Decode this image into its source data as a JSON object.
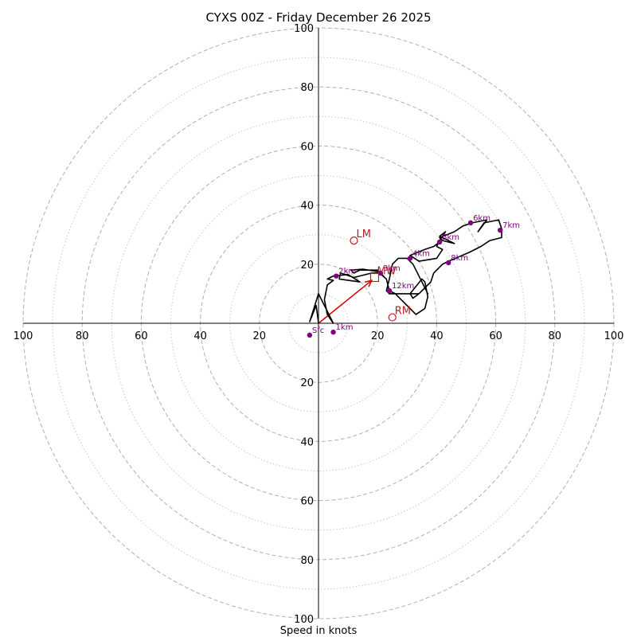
{
  "chart_data": {
    "type": "hodograph",
    "title": "CYXS 00Z - Friday December 26 2025",
    "xlabel": "Speed in knots",
    "units": "knots",
    "rmax": 100,
    "rings_major": [
      20,
      40,
      60,
      80,
      100
    ],
    "rings_minor": [
      10,
      30,
      50,
      70,
      90
    ],
    "tick_labels": {
      "top": [
        "20",
        "40",
        "60",
        "80",
        "100"
      ],
      "bottom": [
        "20",
        "40",
        "60",
        "80",
        "100"
      ],
      "left": [
        "20",
        "40",
        "60",
        "80",
        "100"
      ],
      "right": [
        "20",
        "40",
        "60",
        "80",
        "100"
      ]
    },
    "trace": [
      [
        0,
        0
      ],
      [
        -0.5,
        4
      ],
      [
        -0.8,
        6
      ],
      [
        -3,
        0.5
      ],
      [
        0,
        10
      ],
      [
        5,
        0
      ],
      [
        3,
        3
      ],
      [
        2,
        8
      ],
      [
        3,
        13
      ],
      [
        5,
        14.5
      ],
      [
        3,
        15
      ],
      [
        5,
        16
      ],
      [
        10,
        16.5
      ],
      [
        14,
        14
      ],
      [
        7,
        15
      ],
      [
        7.5,
        17
      ],
      [
        12,
        15.5
      ],
      [
        18,
        17
      ],
      [
        20,
        17
      ],
      [
        22,
        16
      ],
      [
        20,
        18
      ],
      [
        14,
        18
      ],
      [
        12,
        17
      ],
      [
        11,
        18
      ],
      [
        15,
        18.3
      ],
      [
        20,
        17.5
      ],
      [
        23,
        15
      ],
      [
        24,
        11
      ],
      [
        26,
        10
      ],
      [
        32,
        4
      ],
      [
        33,
        3
      ],
      [
        36,
        5
      ],
      [
        37,
        9
      ],
      [
        36,
        14
      ],
      [
        35,
        15
      ],
      [
        31,
        10
      ],
      [
        32,
        8.5
      ],
      [
        34,
        10
      ],
      [
        36,
        12
      ],
      [
        37,
        10
      ],
      [
        33,
        18
      ],
      [
        32,
        20
      ],
      [
        30,
        22
      ],
      [
        27,
        22
      ],
      [
        25,
        20
      ],
      [
        24,
        15
      ],
      [
        23,
        11
      ],
      [
        24,
        10
      ],
      [
        34,
        10
      ],
      [
        38,
        14
      ],
      [
        39,
        17
      ],
      [
        42,
        20
      ],
      [
        44,
        21
      ],
      [
        51,
        24
      ],
      [
        55,
        26
      ],
      [
        58,
        28
      ],
      [
        62,
        29
      ],
      [
        62,
        32
      ],
      [
        61,
        35
      ],
      [
        56,
        34
      ],
      [
        54,
        31
      ],
      [
        57,
        35
      ],
      [
        52,
        34
      ],
      [
        49,
        33
      ],
      [
        46,
        31
      ],
      [
        41,
        29
      ],
      [
        42,
        28
      ],
      [
        46,
        27
      ],
      [
        41,
        29.5
      ],
      [
        43,
        31
      ],
      [
        41,
        28
      ],
      [
        40,
        26
      ],
      [
        42,
        25
      ],
      [
        40,
        22
      ],
      [
        34,
        21
      ],
      [
        31,
        23
      ],
      [
        36,
        25
      ],
      [
        39,
        26
      ],
      [
        41,
        27.5
      ]
    ],
    "height_markers": [
      {
        "label": "Sfc",
        "u": -3,
        "v": -4
      },
      {
        "label": "1km",
        "u": 5,
        "v": -3
      },
      {
        "label": "2km",
        "u": 6,
        "v": 16
      },
      {
        "label": "3km",
        "u": 21,
        "v": 17
      },
      {
        "label": "4km",
        "u": 31,
        "v": 22
      },
      {
        "label": "5km",
        "u": 41,
        "v": 27.5
      },
      {
        "label": "6km",
        "u": 51.5,
        "v": 34
      },
      {
        "label": "7km",
        "u": 61.5,
        "v": 31.5
      },
      {
        "label": "8km",
        "u": 44,
        "v": 20.5
      },
      {
        "label": "12km",
        "u": 24,
        "v": 11
      }
    ],
    "storm_motion": [
      {
        "label": "LM",
        "u": 12,
        "v": 28
      },
      {
        "label": "RM",
        "u": 25,
        "v": 2
      },
      {
        "label": "MW",
        "u": 19,
        "v": 15.5
      }
    ],
    "shear_vector": {
      "from": [
        0,
        0
      ],
      "to": [
        18,
        14.5
      ]
    },
    "colors": {
      "trace": "#000000",
      "markers": "#800080",
      "motion": "#b22222",
      "shear": "#d00000",
      "ring_major": "#b0b0b0",
      "ring_minor": "#c8c8c8"
    }
  }
}
